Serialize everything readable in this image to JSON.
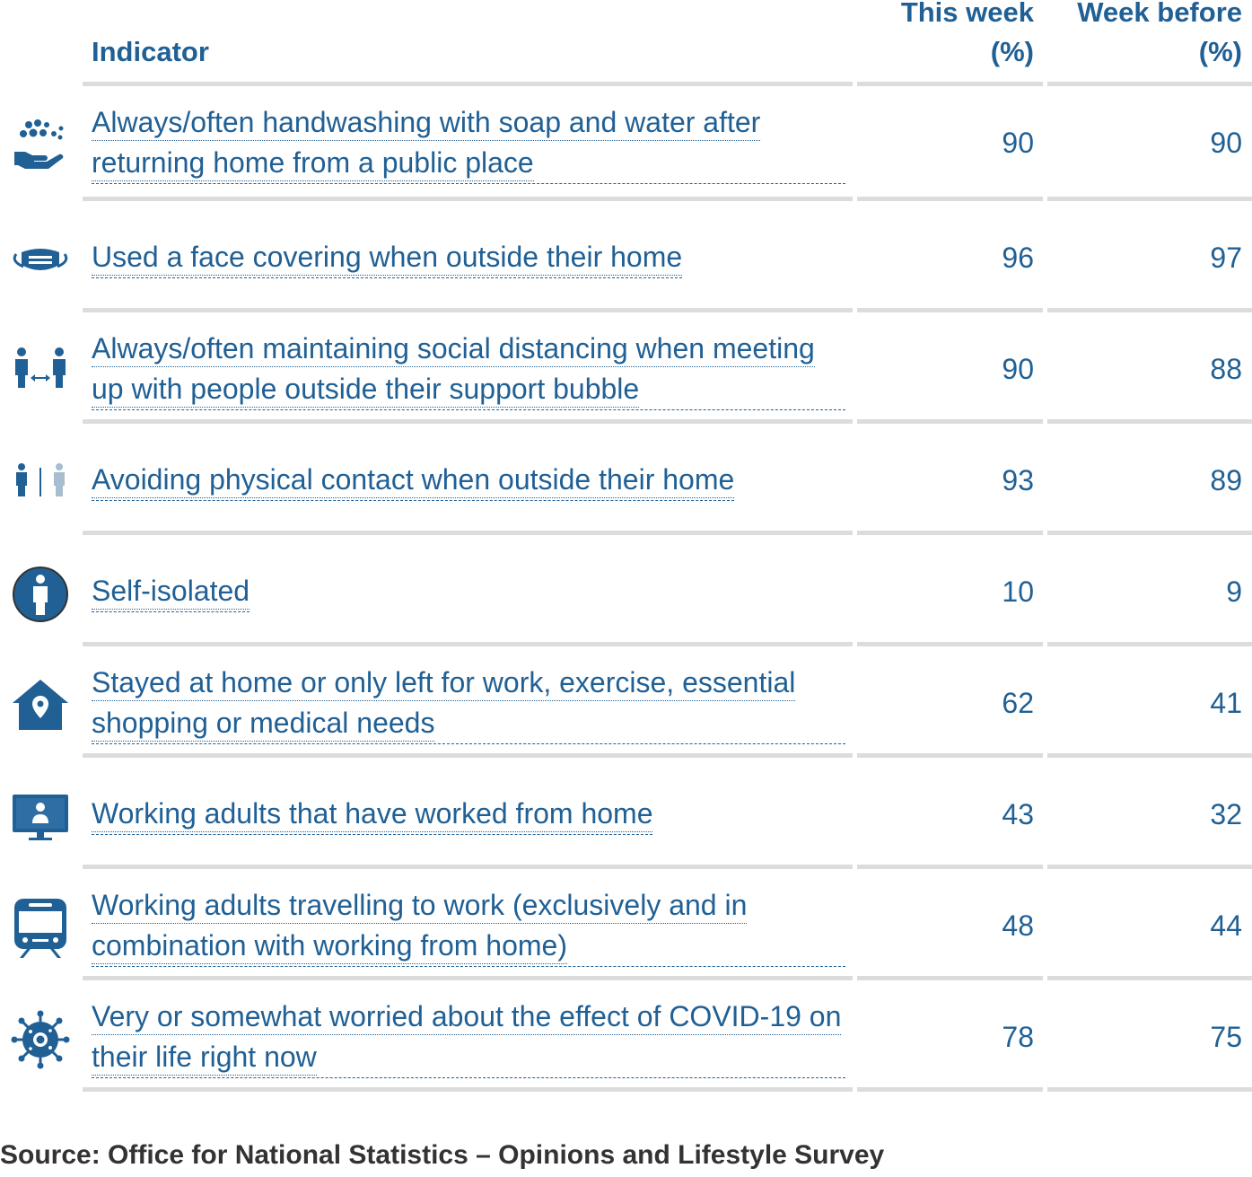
{
  "header": {
    "indicator": "Indicator",
    "this_week_line1": "This week",
    "this_week_line2": "(%)",
    "week_before_line1": "Week before",
    "week_before_line2": "(%)"
  },
  "rows": [
    {
      "icon": "handwashing-icon",
      "label": "Always/often handwashing with soap and water after returning home from a public place",
      "this_week": "90",
      "week_before": "90"
    },
    {
      "icon": "face-mask-icon",
      "label": "Used a face covering when outside their home",
      "this_week": "96",
      "week_before": "97"
    },
    {
      "icon": "social-distancing-icon",
      "label": "Always/often maintaining social distancing when meeting up with people outside their support bubble",
      "this_week": "90",
      "week_before": "88"
    },
    {
      "icon": "avoid-contact-icon",
      "label": "Avoiding physical contact when outside their home",
      "this_week": "93",
      "week_before": "89"
    },
    {
      "icon": "self-isolate-icon",
      "label": "Self-isolated",
      "this_week": "10",
      "week_before": "9"
    },
    {
      "icon": "stay-home-icon",
      "label": "Stayed at home or only left for work, exercise, essential shopping or medical needs",
      "this_week": "62",
      "week_before": "41"
    },
    {
      "icon": "work-from-home-icon",
      "label": "Working adults that have worked from home",
      "this_week": "43",
      "week_before": "32"
    },
    {
      "icon": "train-icon",
      "label": "Working adults travelling to work (exclusively and in combination with working from home)",
      "this_week": "48",
      "week_before": "44"
    },
    {
      "icon": "virus-icon",
      "label": "Very or somewhat worried about the effect of COVID-19 on their life right now",
      "this_week": "78",
      "week_before": "75"
    }
  ],
  "source": "Source: Office for National Statistics – Opinions and Lifestyle Survey",
  "colors": {
    "accent": "#206095",
    "light_accent": "#a8bdd0",
    "rule": "#dcdcdc",
    "source_text": "#333333"
  }
}
